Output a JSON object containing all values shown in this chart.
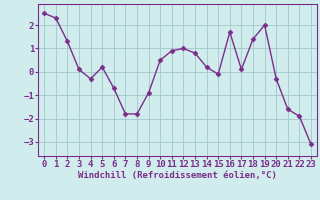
{
  "x": [
    0,
    1,
    2,
    3,
    4,
    5,
    6,
    7,
    8,
    9,
    10,
    11,
    12,
    13,
    14,
    15,
    16,
    17,
    18,
    19,
    20,
    21,
    22,
    23
  ],
  "y": [
    2.5,
    2.3,
    1.3,
    0.1,
    -0.3,
    0.2,
    -0.7,
    -1.8,
    -1.8,
    -0.9,
    0.5,
    0.9,
    1.0,
    0.8,
    0.2,
    -0.1,
    1.7,
    0.1,
    1.4,
    2.0,
    -0.3,
    -1.6,
    -1.9,
    -3.1
  ],
  "line_color": "#7b2d8b",
  "marker": "D",
  "markersize": 2.5,
  "linewidth": 1.0,
  "xlabel": "Windchill (Refroidissement éolien,°C)",
  "xlabel_fontsize": 6.5,
  "xtick_labels": [
    "0",
    "1",
    "2",
    "3",
    "4",
    "5",
    "6",
    "7",
    "8",
    "9",
    "10",
    "11",
    "12",
    "13",
    "14",
    "15",
    "16",
    "17",
    "18",
    "19",
    "20",
    "21",
    "22",
    "23"
  ],
  "ylim": [
    -3.6,
    2.9
  ],
  "yticks": [
    -3,
    -2,
    -1,
    0,
    1,
    2
  ],
  "grid_color": "#a0c8c8",
  "bg_color": "#d0ecec",
  "tick_fontsize": 6.5,
  "fig_bg": "#d0ecec"
}
